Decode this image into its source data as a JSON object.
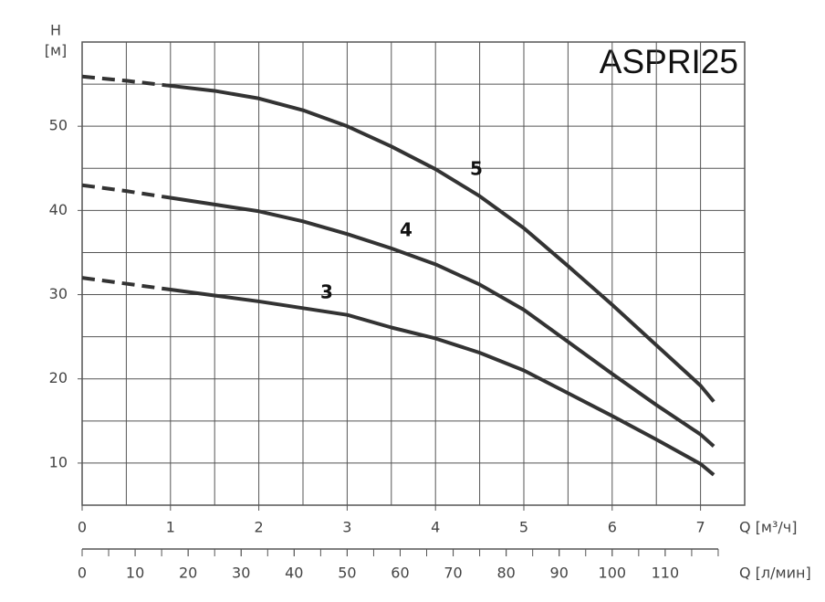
{
  "chart_data": {
    "type": "line",
    "title": "ASPRI25",
    "y_label_symbol": "Н",
    "y_label_unit": "[м]",
    "x_label": "Q [м³/ч]",
    "x2_label": "Q [л/мин]",
    "x": [
      0,
      0.5,
      1,
      1.5,
      2,
      2.5,
      3,
      3.5,
      4,
      4.5,
      5,
      5.5,
      6,
      6.5,
      7,
      7.15
    ],
    "series": [
      {
        "name": "5",
        "color": "#333333",
        "values": [
          55.9,
          55.4,
          54.8,
          54.2,
          53.3,
          51.9,
          50.0,
          47.6,
          44.9,
          41.7,
          37.9,
          33.4,
          28.8,
          24.0,
          19.2,
          17.3
        ]
      },
      {
        "name": "4",
        "color": "#333333",
        "values": [
          43.0,
          42.3,
          41.5,
          40.7,
          39.9,
          38.7,
          37.2,
          35.5,
          33.6,
          31.2,
          28.2,
          24.4,
          20.6,
          16.9,
          13.4,
          12.0
        ]
      },
      {
        "name": "3",
        "color": "#333333",
        "values": [
          32.0,
          31.3,
          30.6,
          29.9,
          29.2,
          28.4,
          27.6,
          26.1,
          24.8,
          23.1,
          21.0,
          18.3,
          15.6,
          12.8,
          9.9,
          8.6
        ]
      }
    ],
    "dashed_below_x": 1,
    "xlim": [
      0,
      7.5
    ],
    "xticks": [
      0,
      1,
      2,
      3,
      4,
      5,
      6,
      7
    ],
    "xgrid_step": 0.5,
    "ylim": [
      5,
      60
    ],
    "yticks": [
      10,
      20,
      30,
      40,
      50
    ],
    "ygrid_step": 5,
    "x2lim": [
      0,
      125
    ],
    "x2ticks": [
      0,
      10,
      20,
      30,
      40,
      50,
      60,
      70,
      80,
      90,
      100,
      110
    ],
    "x2minor_step": 5,
    "grid": true
  }
}
